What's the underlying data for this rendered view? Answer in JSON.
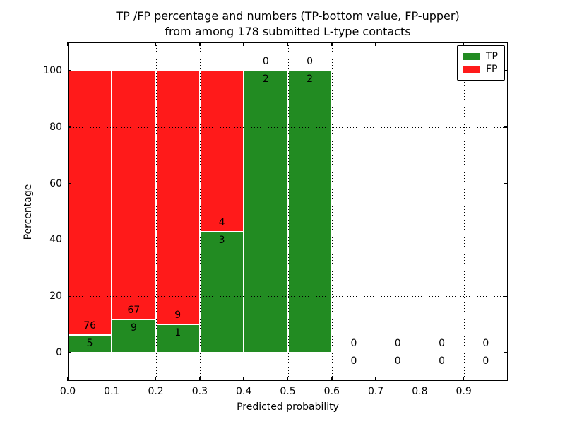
{
  "chart_data": {
    "type": "bar",
    "stacked": true,
    "title_line1": "TP /FP percentage and numbers (TP-bottom value, FP-upper)",
    "title_line2": "from among 178 submitted L-type contacts",
    "xlabel": "Predicted probability",
    "ylabel": "Percentage",
    "total_contacts": 178,
    "xlim": [
      0.0,
      1.0
    ],
    "ylim": [
      -10,
      110
    ],
    "grid": "dotted",
    "x_ticks": [
      {
        "value": 0.0,
        "label": "0.0"
      },
      {
        "value": 0.1,
        "label": "0.1"
      },
      {
        "value": 0.2,
        "label": "0.2"
      },
      {
        "value": 0.3,
        "label": "0.3"
      },
      {
        "value": 0.4,
        "label": "0.4"
      },
      {
        "value": 0.5,
        "label": "0.5"
      },
      {
        "value": 0.6,
        "label": "0.6"
      },
      {
        "value": 0.7,
        "label": "0.7"
      },
      {
        "value": 0.8,
        "label": "0.8"
      },
      {
        "value": 0.9,
        "label": "0.9"
      }
    ],
    "y_ticks": [
      {
        "value": 0,
        "label": "0"
      },
      {
        "value": 20,
        "label": "20"
      },
      {
        "value": 40,
        "label": "40"
      },
      {
        "value": 60,
        "label": "60"
      },
      {
        "value": 80,
        "label": "80"
      },
      {
        "value": 100,
        "label": "100"
      }
    ],
    "legend": {
      "position": "upper-right",
      "items": [
        {
          "label": "TP",
          "color": "#228b22"
        },
        {
          "label": "FP",
          "color": "#ff1a1a"
        }
      ]
    },
    "bins": [
      {
        "x_start": 0.0,
        "x_end": 0.1,
        "tp": 5,
        "fp": 76
      },
      {
        "x_start": 0.1,
        "x_end": 0.2,
        "tp": 9,
        "fp": 67
      },
      {
        "x_start": 0.2,
        "x_end": 0.3,
        "tp": 1,
        "fp": 9
      },
      {
        "x_start": 0.3,
        "x_end": 0.4,
        "tp": 3,
        "fp": 4
      },
      {
        "x_start": 0.4,
        "x_end": 0.5,
        "tp": 2,
        "fp": 0
      },
      {
        "x_start": 0.5,
        "x_end": 0.6,
        "tp": 2,
        "fp": 0
      },
      {
        "x_start": 0.6,
        "x_end": 0.7,
        "tp": 0,
        "fp": 0
      },
      {
        "x_start": 0.7,
        "x_end": 0.8,
        "tp": 0,
        "fp": 0
      },
      {
        "x_start": 0.8,
        "x_end": 0.9,
        "tp": 0,
        "fp": 0
      },
      {
        "x_start": 0.9,
        "x_end": 1.0,
        "tp": 0,
        "fp": 0
      }
    ]
  }
}
